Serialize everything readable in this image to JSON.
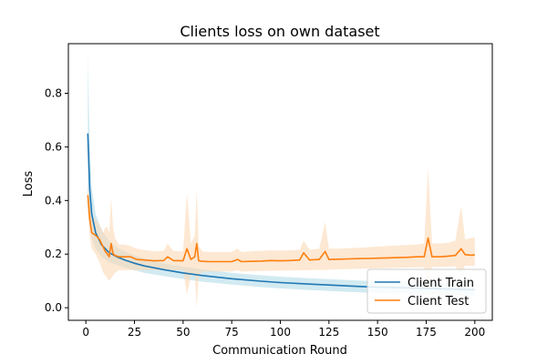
{
  "chart_data": {
    "type": "line",
    "title": "Clients loss on own dataset",
    "xlabel": "Communication Round",
    "ylabel": "Loss",
    "xlim": [
      -9,
      209
    ],
    "ylim": [
      -0.047,
      0.985
    ],
    "xticks": [
      0,
      25,
      50,
      75,
      100,
      125,
      150,
      175,
      200
    ],
    "yticks": [
      0.0,
      0.2,
      0.4,
      0.6,
      0.8
    ],
    "ytick_labels": [
      "0.0",
      "0.2",
      "0.4",
      "0.6",
      "0.8"
    ],
    "grid": false,
    "legend": "bottom-right",
    "series": [
      {
        "name": "Client Train",
        "color": "#1f77b4",
        "band_color": "#add8e6",
        "x": [
          1,
          2,
          3,
          5,
          8,
          12,
          16,
          20,
          25,
          30,
          40,
          50,
          60,
          75,
          90,
          100,
          115,
          130,
          145,
          160,
          175,
          190,
          200
        ],
        "y": [
          0.65,
          0.44,
          0.35,
          0.28,
          0.235,
          0.205,
          0.19,
          0.178,
          0.166,
          0.156,
          0.142,
          0.13,
          0.12,
          0.108,
          0.099,
          0.094,
          0.088,
          0.083,
          0.078,
          0.075,
          0.072,
          0.069,
          0.067
        ],
        "lower": [
          0.37,
          0.3,
          0.26,
          0.22,
          0.19,
          0.17,
          0.16,
          0.15,
          0.14,
          0.13,
          0.118,
          0.107,
          0.097,
          0.086,
          0.077,
          0.072,
          0.066,
          0.061,
          0.056,
          0.053,
          0.05,
          0.047,
          0.045
        ],
        "upper": [
          0.94,
          0.6,
          0.45,
          0.35,
          0.29,
          0.25,
          0.225,
          0.21,
          0.195,
          0.183,
          0.166,
          0.153,
          0.143,
          0.13,
          0.121,
          0.116,
          0.11,
          0.105,
          0.1,
          0.097,
          0.094,
          0.091,
          0.089
        ]
      },
      {
        "name": "Client Test",
        "color": "#ff7f0e",
        "band_color": "#fbd8b5",
        "x": [
          1,
          2,
          3,
          5,
          7,
          9,
          10,
          11,
          12,
          13,
          14,
          15,
          17,
          20,
          23,
          26,
          30,
          35,
          40,
          42,
          45,
          50,
          52,
          54,
          56,
          57,
          58,
          60,
          63,
          66,
          70,
          75,
          78,
          80,
          85,
          90,
          95,
          100,
          105,
          110,
          112,
          115,
          120,
          123,
          125,
          130,
          135,
          140,
          145,
          150,
          155,
          160,
          165,
          170,
          174,
          176,
          178,
          182,
          186,
          190,
          193,
          195,
          198,
          200
        ],
        "y": [
          0.42,
          0.33,
          0.28,
          0.27,
          0.255,
          0.225,
          0.21,
          0.2,
          0.19,
          0.24,
          0.2,
          0.195,
          0.19,
          0.19,
          0.19,
          0.18,
          0.178,
          0.175,
          0.176,
          0.19,
          0.176,
          0.175,
          0.22,
          0.18,
          0.19,
          0.24,
          0.175,
          0.173,
          0.172,
          0.172,
          0.172,
          0.172,
          0.18,
          0.172,
          0.173,
          0.174,
          0.176,
          0.175,
          0.176,
          0.178,
          0.205,
          0.178,
          0.18,
          0.21,
          0.18,
          0.181,
          0.182,
          0.183,
          0.184,
          0.185,
          0.186,
          0.187,
          0.188,
          0.19,
          0.19,
          0.26,
          0.19,
          0.19,
          0.192,
          0.195,
          0.22,
          0.198,
          0.196,
          0.197
        ],
        "lower": [
          0.35,
          0.27,
          0.22,
          0.2,
          0.17,
          0.13,
          0.12,
          0.11,
          0.1,
          0.11,
          0.12,
          0.13,
          0.14,
          0.14,
          0.14,
          0.14,
          0.14,
          0.14,
          0.14,
          0.14,
          0.14,
          0.14,
          0.05,
          0.12,
          0.13,
          0.0,
          0.12,
          0.135,
          0.135,
          0.135,
          0.135,
          0.135,
          0.14,
          0.135,
          0.136,
          0.137,
          0.138,
          0.138,
          0.139,
          0.14,
          0.14,
          0.14,
          0.141,
          0.14,
          0.142,
          0.143,
          0.144,
          0.145,
          0.146,
          0.147,
          0.148,
          0.149,
          0.15,
          0.151,
          0.151,
          0.1,
          0.152,
          0.152,
          0.153,
          0.155,
          0.12,
          0.157,
          0.156,
          0.157
        ],
        "upper": [
          0.45,
          0.4,
          0.34,
          0.33,
          0.31,
          0.28,
          0.3,
          0.3,
          0.28,
          0.41,
          0.3,
          0.26,
          0.235,
          0.235,
          0.23,
          0.22,
          0.215,
          0.21,
          0.212,
          0.24,
          0.212,
          0.21,
          0.43,
          0.24,
          0.27,
          0.44,
          0.23,
          0.21,
          0.208,
          0.208,
          0.208,
          0.208,
          0.22,
          0.208,
          0.21,
          0.212,
          0.214,
          0.213,
          0.214,
          0.216,
          0.25,
          0.216,
          0.22,
          0.32,
          0.22,
          0.22,
          0.222,
          0.224,
          0.226,
          0.228,
          0.23,
          0.232,
          0.234,
          0.236,
          0.24,
          0.52,
          0.24,
          0.24,
          0.242,
          0.25,
          0.38,
          0.255,
          0.26,
          0.262
        ]
      }
    ]
  }
}
